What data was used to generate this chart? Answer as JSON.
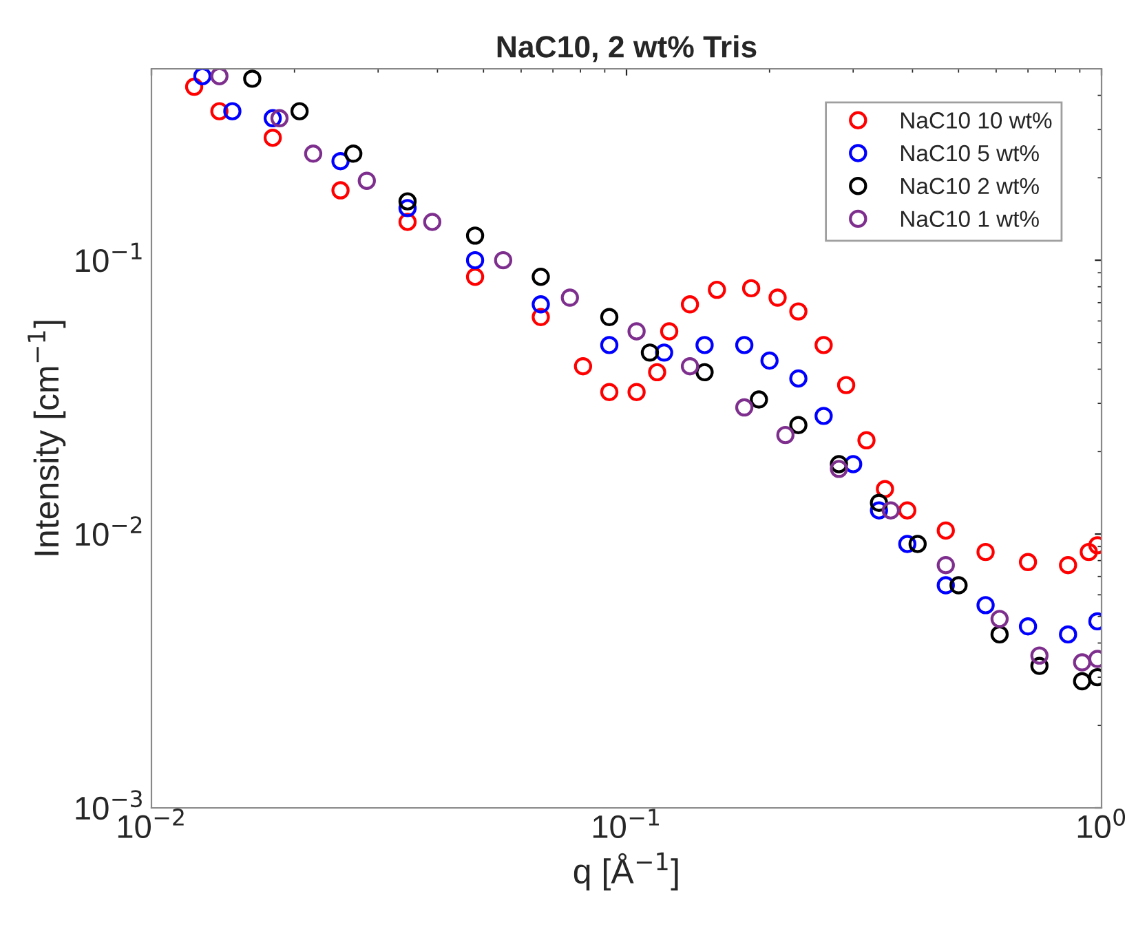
{
  "chart_data": {
    "type": "scatter",
    "title": "NaC10, 2 wt% Tris",
    "xlabel": "q [Å$^{−1}$]",
    "ylabel": "Intensity [cm$^{−1}$]",
    "log": "xy",
    "grid": false,
    "legend": "top right",
    "marker": "circle",
    "xlim": [
      0.01,
      1
    ],
    "ylim": [
      0.001,
      0.5
    ],
    "xticks": [
      {
        "value": 0.01,
        "label": "10$^{−2}$"
      },
      {
        "value": 0.1,
        "label": "10$^{−1}$"
      },
      {
        "value": 1,
        "label": "10$^{0}$"
      }
    ],
    "yticks": [
      {
        "value": 0.001,
        "label": "10$^{−3}$"
      },
      {
        "value": 0.01,
        "label": "10$^{−2}$"
      },
      {
        "value": 0.1,
        "label": "10$^{−1}$"
      }
    ],
    "series": [
      {
        "name": "NaC10 10 wt%",
        "color": "#ff0000",
        "x": [
          0.0123,
          0.0139,
          0.018,
          0.025,
          0.0346,
          0.048,
          0.066,
          0.081,
          0.092,
          0.105,
          0.116,
          0.123,
          0.136,
          0.155,
          0.183,
          0.208,
          0.23,
          0.26,
          0.29,
          0.32,
          0.35,
          0.39,
          0.47,
          0.57,
          0.7,
          0.85,
          0.94,
          0.98
        ],
        "values": [
          0.43,
          0.35,
          0.28,
          0.18,
          0.138,
          0.087,
          0.062,
          0.041,
          0.033,
          0.033,
          0.039,
          0.055,
          0.069,
          0.078,
          0.079,
          0.073,
          0.065,
          0.049,
          0.035,
          0.022,
          0.0146,
          0.0122,
          0.0103,
          0.0086,
          0.0079,
          0.0077,
          0.0086,
          0.0091
        ]
      },
      {
        "name": "NaC10 5 wt%",
        "color": "#0000ff",
        "x": [
          0.0128,
          0.0148,
          0.018,
          0.025,
          0.0346,
          0.048,
          0.066,
          0.092,
          0.12,
          0.146,
          0.177,
          0.2,
          0.23,
          0.26,
          0.3,
          0.34,
          0.39,
          0.47,
          0.57,
          0.7,
          0.85,
          0.98
        ],
        "values": [
          0.47,
          0.35,
          0.33,
          0.23,
          0.155,
          0.1,
          0.069,
          0.049,
          0.046,
          0.049,
          0.049,
          0.043,
          0.037,
          0.027,
          0.018,
          0.0122,
          0.0092,
          0.0065,
          0.0055,
          0.0046,
          0.0043,
          0.0048
        ]
      },
      {
        "name": "NaC10 2 wt%",
        "color": "#000000",
        "x": [
          0.0163,
          0.0205,
          0.0266,
          0.0346,
          0.048,
          0.066,
          0.092,
          0.112,
          0.146,
          0.19,
          0.23,
          0.28,
          0.34,
          0.41,
          0.5,
          0.61,
          0.74,
          0.91,
          0.98
        ],
        "values": [
          0.46,
          0.35,
          0.245,
          0.164,
          0.123,
          0.087,
          0.062,
          0.046,
          0.039,
          0.031,
          0.025,
          0.018,
          0.013,
          0.0092,
          0.0065,
          0.0043,
          0.0033,
          0.0029,
          0.003
        ]
      },
      {
        "name": "NaC10 1 wt%",
        "color": "#7e2f8e",
        "x": [
          0.0139,
          0.0186,
          0.0219,
          0.0284,
          0.039,
          0.055,
          0.076,
          0.105,
          0.136,
          0.177,
          0.216,
          0.28,
          0.36,
          0.47,
          0.61,
          0.74,
          0.91,
          0.98
        ],
        "values": [
          0.47,
          0.33,
          0.245,
          0.195,
          0.138,
          0.1,
          0.073,
          0.055,
          0.041,
          0.029,
          0.023,
          0.0173,
          0.0122,
          0.0077,
          0.0049,
          0.0036,
          0.0034,
          0.0035
        ]
      }
    ]
  }
}
